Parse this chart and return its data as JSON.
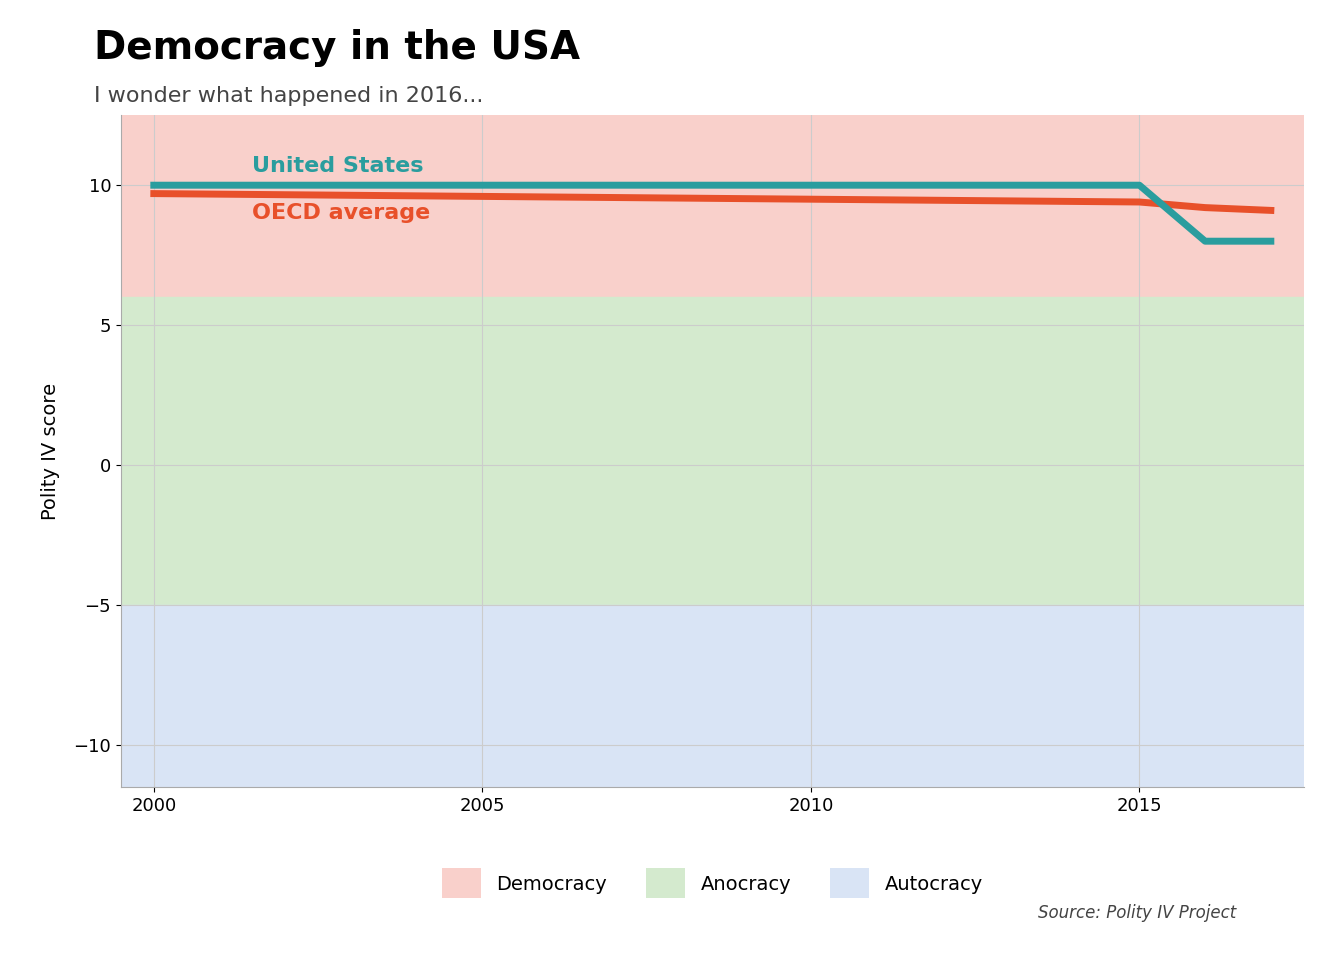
{
  "title": "Democracy in the USA",
  "subtitle": "I wonder what happened in 2016...",
  "ylabel": "Polity IV score",
  "source": "Source: Polity IV Project",
  "ylim": [
    -11.5,
    12.5
  ],
  "xlim": [
    1999.5,
    2017.5
  ],
  "xticks": [
    2000,
    2005,
    2010,
    2015
  ],
  "yticks": [
    -10,
    -5,
    0,
    5,
    10
  ],
  "us_years": [
    2000,
    2001,
    2002,
    2003,
    2004,
    2005,
    2006,
    2007,
    2008,
    2009,
    2010,
    2011,
    2012,
    2013,
    2014,
    2015,
    2016,
    2017
  ],
  "us_scores": [
    10,
    10,
    10,
    10,
    10,
    10,
    10,
    10,
    10,
    10,
    10,
    10,
    10,
    10,
    10,
    10,
    8,
    8
  ],
  "oecd_years": [
    2000,
    2001,
    2002,
    2003,
    2004,
    2005,
    2006,
    2007,
    2008,
    2009,
    2010,
    2011,
    2012,
    2013,
    2014,
    2015,
    2016,
    2017
  ],
  "oecd_scores": [
    9.7,
    9.68,
    9.66,
    9.64,
    9.62,
    9.6,
    9.58,
    9.56,
    9.54,
    9.52,
    9.5,
    9.48,
    9.46,
    9.44,
    9.42,
    9.4,
    9.2,
    9.1
  ],
  "us_color": "#2a9d9e",
  "oecd_color": "#e8502a",
  "us_label": "United States",
  "oecd_label": "OECD average",
  "democracy_color": "#f9d0cb",
  "anocracy_color": "#d4eace",
  "autocracy_color": "#d9e4f5",
  "democracy_range": [
    6,
    12.5
  ],
  "anocracy_range": [
    -5,
    6
  ],
  "autocracy_range": [
    -11.5,
    -5
  ],
  "background_color": "#ffffff",
  "grid_color": "#cccccc",
  "line_width": 5
}
